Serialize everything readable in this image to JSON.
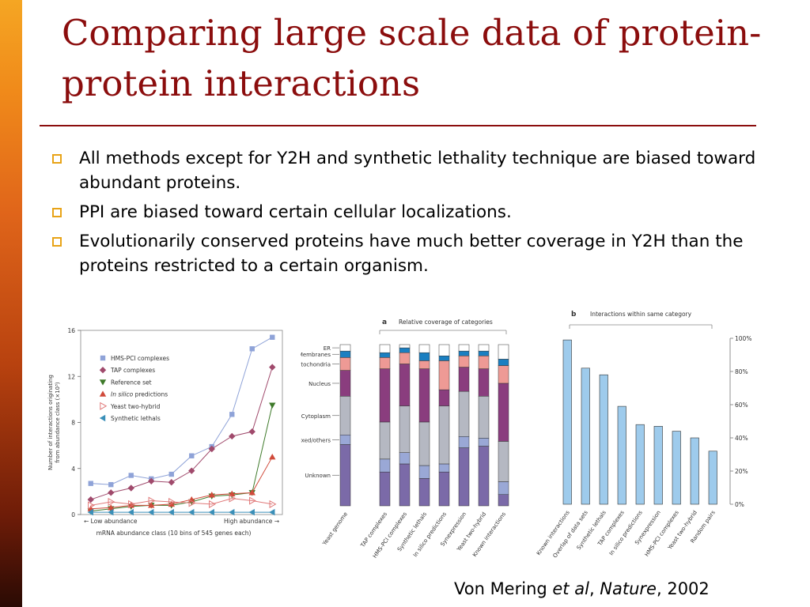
{
  "title": "Comparing large scale data of protein-protein interactions",
  "bullets": [
    "All methods except for Y2H and synthetic lethality technique are biased toward abundant proteins.",
    "PPI are biased toward certain cellular localizations.",
    "Evolutionarily conserved proteins have much better coverage in Y2H than the proteins restricted to a certain organism."
  ],
  "credit": {
    "author": "Von Mering ",
    "etal": "et al",
    "sep": ", ",
    "journal": "Nature",
    "year": ", 2002"
  },
  "chart_data": [
    {
      "type": "line",
      "ylabel": "Number of interactions originating from abundance class (×10³)",
      "xlabel": "mRNA abundance class (10 bins of 545 genes each)",
      "x_low_label": "Low abundance",
      "x_high_label": "High abundance",
      "ylim": [
        0,
        16
      ],
      "yticks": [
        "0",
        "4",
        "8",
        "12",
        "16"
      ],
      "x": [
        1,
        2,
        3,
        4,
        5,
        6,
        7,
        8,
        9,
        10
      ],
      "series": [
        {
          "name": "HMS-PCI complexes",
          "color": "#8fa3d8",
          "marker": "square",
          "values": [
            2.7,
            2.6,
            3.4,
            3.1,
            3.5,
            5.1,
            5.9,
            8.7,
            14.4,
            15.4
          ]
        },
        {
          "name": "TAP complexes",
          "color": "#a04a6c",
          "marker": "diamond",
          "values": [
            1.3,
            1.9,
            2.3,
            2.9,
            2.8,
            3.8,
            5.7,
            6.8,
            7.2,
            12.8
          ]
        },
        {
          "name": "Reference set",
          "color": "#3e7a2a",
          "marker": "triangle-down",
          "values": [
            0.3,
            0.5,
            0.7,
            0.8,
            0.8,
            1.1,
            1.6,
            1.7,
            1.9,
            9.5
          ]
        },
        {
          "name": " predictions",
          "name_italic": "In silico",
          "color": "#d04a3a",
          "marker": "triangle-up",
          "values": [
            0.5,
            0.6,
            0.8,
            0.8,
            0.9,
            1.3,
            1.7,
            1.8,
            1.9,
            5.0
          ]
        },
        {
          "name": "Yeast two-hybrid",
          "color": "#e07a7a",
          "marker": "triangle-right",
          "values": [
            0.8,
            1.1,
            0.9,
            1.2,
            1.1,
            1.0,
            0.9,
            1.4,
            1.2,
            0.9
          ]
        },
        {
          "name": "Synthetic lethals",
          "color": "#3a8fb8",
          "marker": "triangle-left",
          "values": [
            0.2,
            0.2,
            0.2,
            0.2,
            0.2,
            0.2,
            0.2,
            0.2,
            0.2,
            0.2
          ]
        }
      ]
    },
    {
      "type": "bar",
      "panel": "a",
      "title": "Relative coverage of categories",
      "stacked": true,
      "categories": [
        "Yeast genome",
        "TAP complexes",
        "HMS-PCI complexes",
        "Synthetic lethals",
        "In silico predictions",
        "Synexpression",
        "Yeast two-hybrid",
        "Known interactions"
      ],
      "series": [
        {
          "name": "Unknown",
          "color": "#7b6aa8",
          "values": [
            0.38,
            0.21,
            0.26,
            0.17,
            0.21,
            0.36,
            0.37,
            0.07
          ]
        },
        {
          "name": "Mixed/others",
          "color": "#9aa8d6",
          "values": [
            0.06,
            0.08,
            0.07,
            0.08,
            0.05,
            0.07,
            0.05,
            0.08
          ]
        },
        {
          "name": "Cytoplasm",
          "color": "#b5b8c2",
          "values": [
            0.24,
            0.23,
            0.29,
            0.27,
            0.36,
            0.28,
            0.26,
            0.25
          ]
        },
        {
          "name": "Nucleus",
          "color": "#8a3d7e",
          "values": [
            0.16,
            0.33,
            0.26,
            0.33,
            0.1,
            0.15,
            0.17,
            0.36
          ]
        },
        {
          "name": "Mitochondria",
          "color": "#ee9a95",
          "values": [
            0.08,
            0.07,
            0.07,
            0.05,
            0.18,
            0.07,
            0.08,
            0.11
          ]
        },
        {
          "name": "Membranes",
          "color": "#1a7fc1",
          "values": [
            0.04,
            0.03,
            0.03,
            0.05,
            0.03,
            0.03,
            0.03,
            0.04
          ]
        },
        {
          "name": "ER",
          "color": "#ffffff",
          "values": [
            0.04,
            0.05,
            0.02,
            0.05,
            0.07,
            0.04,
            0.04,
            0.09
          ]
        }
      ]
    },
    {
      "type": "bar",
      "panel": "b",
      "title": "Interactions within same category",
      "categories": [
        "Known interactions",
        "Overlap of data sets",
        "Synthetic lethals",
        "TAP complexes",
        "In silico predictions",
        "Synexpression",
        "HMS-PCI complexes",
        "Yeast two-hybrid",
        "Random pairs"
      ],
      "values": [
        99,
        82,
        78,
        59,
        48,
        47,
        44,
        40,
        32
      ],
      "color": "#9ecbec",
      "ylim": [
        0,
        100
      ],
      "yticks": [
        "0%",
        "20%",
        "40%",
        "60%",
        "80%",
        "100%"
      ]
    }
  ]
}
